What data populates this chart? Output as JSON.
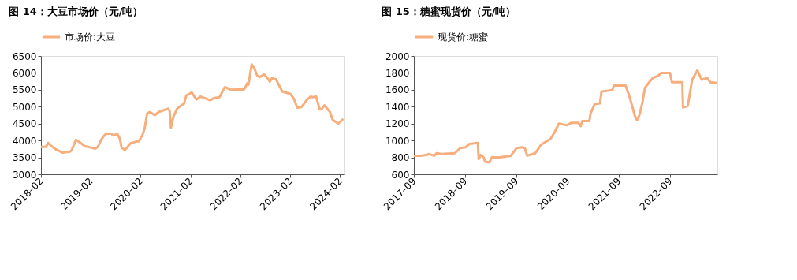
{
  "chart_data": [
    {
      "type": "line",
      "title": "图 14：大豆市场价（元/吨）",
      "legend": "top",
      "grid": false,
      "line_style": "solid",
      "marker": "none",
      "x": [
        "2018-02-01",
        "2018-03-10",
        "2018-03-25",
        "2018-04-15",
        "2018-05-20",
        "2018-07-10",
        "2018-09-01",
        "2018-09-15",
        "2018-10-15",
        "2018-11-20",
        "2018-12-20",
        "2019-02-01",
        "2019-03-05",
        "2019-03-25",
        "2019-04-15",
        "2019-05-01",
        "2019-05-25",
        "2019-07-01",
        "2019-07-15",
        "2019-08-15",
        "2019-09-01",
        "2019-09-15",
        "2019-10-10",
        "2019-11-20",
        "2019-12-25",
        "2020-01-20",
        "2020-02-15",
        "2020-03-01",
        "2020-03-20",
        "2020-04-10",
        "2020-05-15",
        "2020-06-15",
        "2020-08-20",
        "2020-09-01",
        "2020-09-10",
        "2020-09-28",
        "2020-10-25",
        "2020-11-15",
        "2020-12-15",
        "2021-01-01",
        "2021-02-10",
        "2021-03-15",
        "2021-04-15",
        "2021-06-25",
        "2021-07-25",
        "2021-09-01",
        "2021-10-10",
        "2021-11-25",
        "2022-01-15",
        "2022-03-01",
        "2022-03-25",
        "2022-04-01",
        "2022-04-25",
        "2022-05-15",
        "2022-06-05",
        "2022-06-25",
        "2022-07-25",
        "2022-08-20",
        "2022-09-05",
        "2022-09-20",
        "2022-10-20",
        "2022-12-05",
        "2023-02-01",
        "2023-03-01",
        "2023-03-25",
        "2023-04-25",
        "2023-06-05",
        "2023-07-01",
        "2023-07-15",
        "2023-08-10",
        "2023-09-05",
        "2023-09-20",
        "2023-10-10",
        "2023-11-20",
        "2023-12-10",
        "2024-01-20",
        "2024-02-25"
      ],
      "series": [
        {
          "name": "市场价:大豆",
          "color": "#f6ae7d",
          "values": [
            3810,
            3810,
            3930,
            3850,
            3740,
            3640,
            3670,
            3720,
            4020,
            3920,
            3830,
            3790,
            3760,
            3810,
            4000,
            4100,
            4210,
            4200,
            4150,
            4190,
            4060,
            3780,
            3720,
            3920,
            3960,
            3980,
            4170,
            4340,
            4800,
            4840,
            4750,
            4850,
            4940,
            4870,
            4380,
            4700,
            4940,
            5010,
            5090,
            5330,
            5420,
            5210,
            5300,
            5190,
            5260,
            5280,
            5580,
            5500,
            5510,
            5510,
            5700,
            5650,
            6250,
            6130,
            5910,
            5880,
            5960,
            5840,
            5740,
            5840,
            5810,
            5450,
            5380,
            5230,
            4970,
            4990,
            5210,
            5300,
            5280,
            5300,
            4920,
            4930,
            5040,
            4840,
            4610,
            4500,
            4640
          ]
        }
      ],
      "xlim": [
        "2018-02-01",
        "2024-03-05"
      ],
      "xticks": [
        {
          "value": "2018-02-01",
          "label": "2018–02"
        },
        {
          "value": "2019-02-01",
          "label": "2019–02"
        },
        {
          "value": "2020-02-01",
          "label": "2020–02"
        },
        {
          "value": "2021-02-01",
          "label": "2021–02"
        },
        {
          "value": "2022-02-01",
          "label": "2022–02"
        },
        {
          "value": "2023-02-01",
          "label": "2023–02"
        },
        {
          "value": "2024-02-01",
          "label": "2024–02"
        }
      ],
      "ylim": [
        3000,
        6500
      ],
      "yticks": [
        3000,
        3500,
        4000,
        4500,
        5000,
        5500,
        6000,
        6500
      ]
    },
    {
      "type": "line",
      "title": "图 15：糖蜜现货价（元/吨）",
      "legend": "top",
      "grid": false,
      "line_style": "solid",
      "marker": "none",
      "x": [
        "2017-09-01",
        "2017-10-20",
        "2017-12-05",
        "2017-12-15",
        "2018-01-25",
        "2018-02-10",
        "2018-03-20",
        "2018-06-20",
        "2018-07-28",
        "2018-09-05",
        "2018-10-03",
        "2018-12-01",
        "2018-12-07",
        "2018-12-22",
        "2019-01-12",
        "2019-01-22",
        "2019-02-21",
        "2019-03-10",
        "2019-05-06",
        "2019-07-25",
        "2019-09-03",
        "2019-10-10",
        "2019-11-01",
        "2019-11-18",
        "2020-01-15",
        "2020-02-25",
        "2020-03-25",
        "2020-05-03",
        "2020-06-01",
        "2020-07-01",
        "2020-08-28",
        "2020-09-28",
        "2020-11-15",
        "2020-12-03",
        "2020-12-15",
        "2021-02-03",
        "2021-02-12",
        "2021-03-12",
        "2021-04-20",
        "2021-05-01",
        "2021-06-18",
        "2021-07-18",
        "2021-07-28",
        "2021-10-20",
        "2021-11-20",
        "2021-12-10",
        "2021-12-25",
        "2022-01-10",
        "2022-01-28",
        "2022-02-18",
        "2022-03-06",
        "2022-04-06",
        "2022-05-03",
        "2022-06-12",
        "2022-06-28",
        "2022-09-01",
        "2022-09-15",
        "2022-11-28",
        "2022-12-03",
        "2023-01-06",
        "2023-02-06",
        "2023-03-15",
        "2023-04-15",
        "2023-05-25",
        "2023-06-15",
        "2023-08-03"
      ],
      "series": [
        {
          "name": "现货价:糖蜜",
          "color": "#f6ae7d",
          "values": [
            820,
            820,
            830,
            840,
            820,
            850,
            840,
            850,
            910,
            920,
            960,
            970,
            780,
            830,
            800,
            750,
            740,
            800,
            800,
            820,
            910,
            920,
            910,
            820,
            850,
            950,
            980,
            1020,
            1100,
            1200,
            1180,
            1210,
            1210,
            1170,
            1230,
            1230,
            1320,
            1430,
            1440,
            1580,
            1590,
            1600,
            1650,
            1650,
            1500,
            1380,
            1290,
            1240,
            1310,
            1460,
            1620,
            1690,
            1740,
            1770,
            1800,
            1800,
            1690,
            1690,
            1390,
            1410,
            1720,
            1830,
            1720,
            1740,
            1690,
            1680
          ]
        }
      ],
      "xlim": [
        "2017-09-01",
        "2023-08-05"
      ],
      "xticks": [
        {
          "value": "2017-09-01",
          "label": "2017–09"
        },
        {
          "value": "2018-09-01",
          "label": "2018–09"
        },
        {
          "value": "2019-09-01",
          "label": "2019–09"
        },
        {
          "value": "2020-09-01",
          "label": "2020–09"
        },
        {
          "value": "2021-09-01",
          "label": "2021–09"
        },
        {
          "value": "2022-09-01",
          "label": "2022–09"
        }
      ],
      "ylim": [
        600,
        2000
      ],
      "yticks": [
        600,
        800,
        1000,
        1200,
        1400,
        1600,
        1800,
        2000
      ]
    }
  ]
}
